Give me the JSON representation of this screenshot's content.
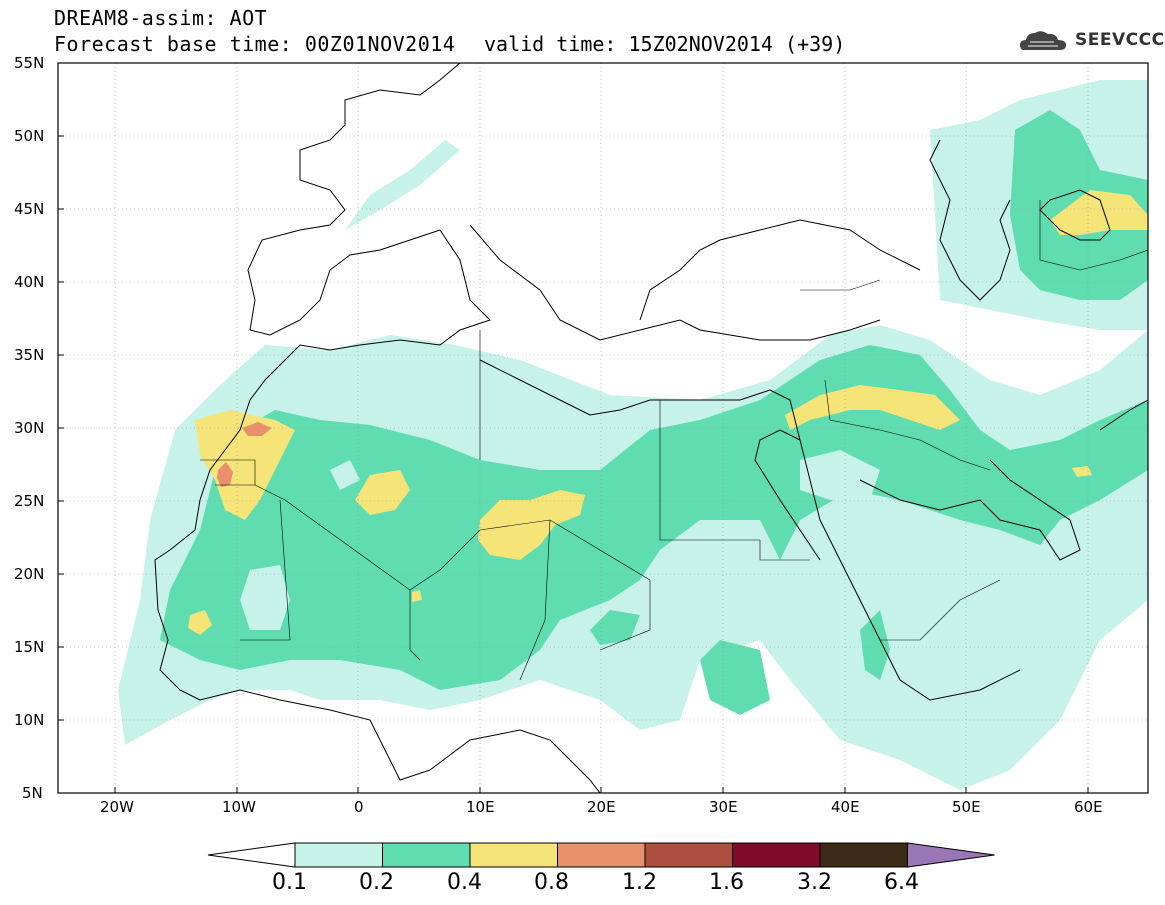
{
  "header": {
    "title": "DREAM8-assim: AOT",
    "base_time": "Forecast base time: 00Z01NOV2014",
    "valid_time": "valid time: 15Z02NOV2014 (+39)",
    "logo_text": "SEEVCCC"
  },
  "map": {
    "lat_labels": [
      "55N",
      "50N",
      "45N",
      "40N",
      "35N",
      "30N",
      "25N",
      "20N",
      "15N",
      "10N",
      "5N"
    ],
    "lon_labels": [
      "20W",
      "10W",
      "0",
      "10E",
      "20E",
      "30E",
      "40E",
      "50E",
      "60E"
    ],
    "grid": true
  },
  "legend": {
    "labels": [
      "0.1",
      "0.2",
      "0.4",
      "0.8",
      "1.2",
      "1.6",
      "3.2",
      "6.4"
    ],
    "colors": [
      "#ffffff",
      "#c6f2ea",
      "#5fdcb0",
      "#f5e579",
      "#e8906a",
      "#ad4f3e",
      "#7f0a2a",
      "#3d2a17",
      "#9b76b6"
    ]
  }
}
